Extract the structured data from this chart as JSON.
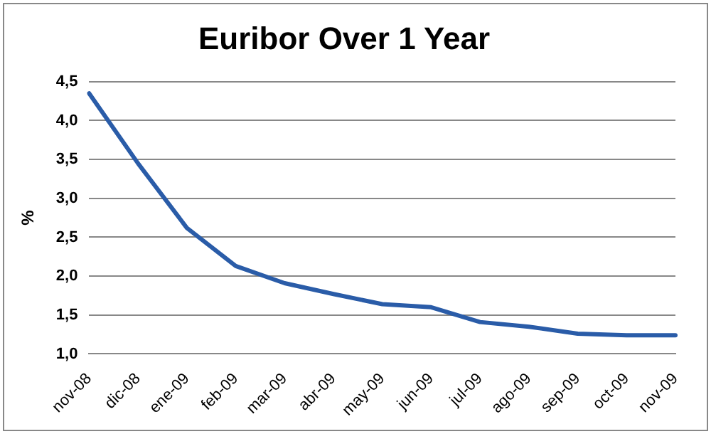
{
  "chart_data": {
    "type": "line",
    "title": "Euribor Over 1 Year",
    "ylabel": "%",
    "categories": [
      "nov-08",
      "dic-08",
      "ene-09",
      "feb-09",
      "mar-09",
      "abr-09",
      "may-09",
      "jun-09",
      "jul-09",
      "ago-09",
      "sep-09",
      "oct-09",
      "nov-09"
    ],
    "series": [
      {
        "color": "#2a5ca8",
        "values": [
          4.35,
          3.45,
          2.62,
          2.13,
          1.91,
          1.77,
          1.64,
          1.6,
          1.41,
          1.35,
          1.26,
          1.24,
          1.24
        ]
      }
    ],
    "ylim": [
      1,
      4.5
    ],
    "yticks": [
      {
        "value": 1,
        "label": "1,0"
      },
      {
        "value": 1.5,
        "label": "1,5"
      },
      {
        "value": 2,
        "label": "2,0"
      },
      {
        "value": 2.5,
        "label": "2,5"
      },
      {
        "value": 3,
        "label": "3,0"
      },
      {
        "value": 3.5,
        "label": "3,5"
      },
      {
        "value": 4,
        "label": "4,0"
      },
      {
        "value": 4.5,
        "label": "4,5"
      }
    ],
    "grid": "y",
    "legend": false,
    "marker": "none",
    "line_style": "solid"
  }
}
